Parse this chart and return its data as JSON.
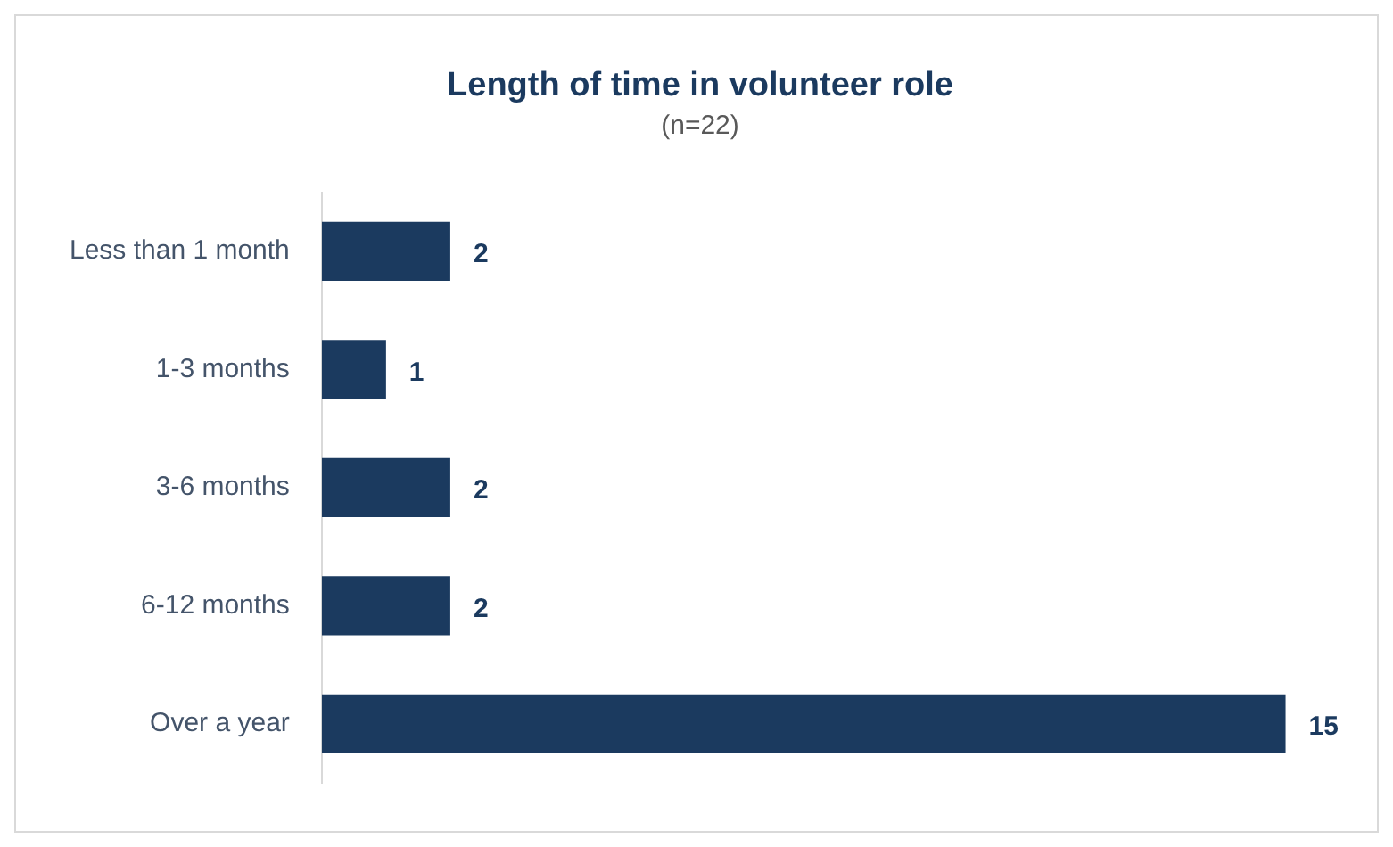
{
  "chart_data": {
    "type": "bar",
    "orientation": "horizontal",
    "title": "Length of time in volunteer role",
    "subtitle": "(n=22)",
    "categories": [
      "Less than 1 month",
      "1-3 months",
      "3-6 months",
      "6-12 months",
      "Over a year"
    ],
    "values": [
      2,
      1,
      2,
      2,
      15
    ],
    "color": "#1b3a5f",
    "data_labels": true,
    "legend": false,
    "tick_labels": "y"
  }
}
